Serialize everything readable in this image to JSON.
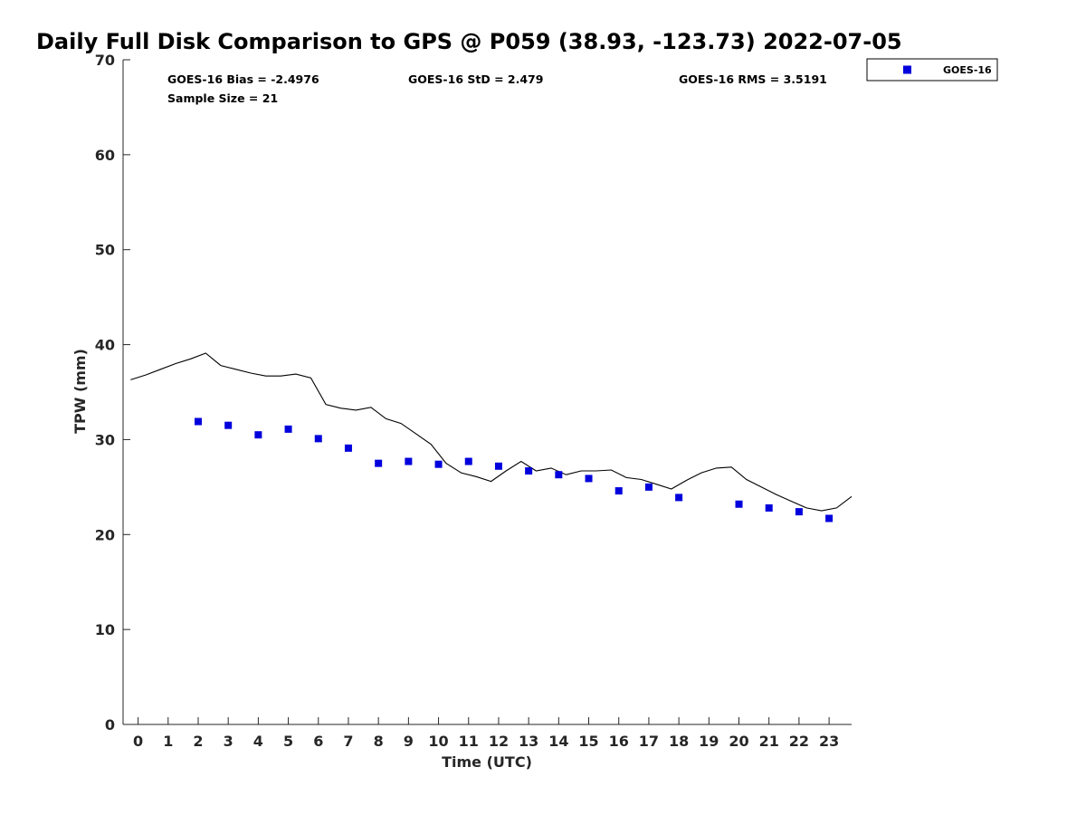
{
  "chart_data": {
    "type": "scatter",
    "title": "Daily Full Disk Comparison to GPS @ P059 (38.93, -123.73) 2022-07-05",
    "xlabel": "Time (UTC)",
    "ylabel": "TPW (mm)",
    "xlim": [
      -0.5,
      23.75
    ],
    "ylim": [
      0,
      70
    ],
    "xticks": [
      0,
      1,
      2,
      3,
      4,
      5,
      6,
      7,
      8,
      9,
      10,
      11,
      12,
      13,
      14,
      15,
      16,
      17,
      18,
      19,
      20,
      21,
      22,
      23
    ],
    "yticks": [
      0,
      10,
      20,
      30,
      40,
      50,
      60,
      70
    ],
    "grid": false,
    "legend_position": "top-right, outside plot",
    "stats": {
      "bias": "GOES-16 Bias = -2.4976",
      "std": "GOES-16 StD = 2.479",
      "rms": "GOES-16 RMS = 3.5191",
      "sample": "Sample Size = 21"
    },
    "series": [
      {
        "name": "GOES-16",
        "type": "scatter",
        "color": "#0000dd",
        "marker": "square",
        "x": [
          2,
          3,
          4,
          5,
          6,
          7,
          8,
          9,
          10,
          11,
          12,
          13,
          14,
          15,
          16,
          17,
          18,
          20,
          21,
          22,
          23
        ],
        "y": [
          31.9,
          31.5,
          30.5,
          31.1,
          30.1,
          29.1,
          27.5,
          27.7,
          27.4,
          27.7,
          27.2,
          26.7,
          26.3,
          25.9,
          24.6,
          25.0,
          23.9,
          23.2,
          22.8,
          22.4,
          21.7
        ]
      },
      {
        "type": "line",
        "color": "#000000",
        "x": [
          -0.25,
          0.25,
          0.75,
          1.25,
          1.75,
          2.25,
          2.75,
          3.25,
          3.75,
          4.25,
          4.75,
          5.25,
          5.75,
          6.25,
          6.75,
          7.25,
          7.75,
          8.25,
          8.75,
          9.25,
          9.75,
          10.25,
          10.75,
          11.25,
          11.75,
          12.25,
          12.75,
          13.25,
          13.75,
          14.25,
          14.75,
          15.25,
          15.75,
          16.25,
          16.75,
          17.25,
          17.75,
          18.25,
          18.75,
          19.25,
          19.75,
          20.25,
          20.75,
          21.25,
          21.75,
          22.25,
          22.75,
          23.25,
          23.75
        ],
        "y": [
          36.3,
          36.8,
          37.4,
          38.0,
          38.5,
          39.1,
          37.8,
          37.4,
          37.0,
          36.7,
          36.7,
          36.9,
          36.5,
          33.7,
          33.3,
          33.1,
          33.4,
          32.2,
          31.7,
          30.6,
          29.5,
          27.5,
          26.5,
          26.1,
          25.6,
          26.7,
          27.7,
          26.7,
          27.0,
          26.3,
          26.7,
          26.7,
          26.8,
          26.0,
          25.8,
          25.3,
          24.8,
          25.7,
          26.5,
          27.0,
          27.1,
          25.8,
          25.0,
          24.2,
          23.5,
          22.8,
          22.5,
          22.8,
          24.0
        ]
      }
    ]
  }
}
